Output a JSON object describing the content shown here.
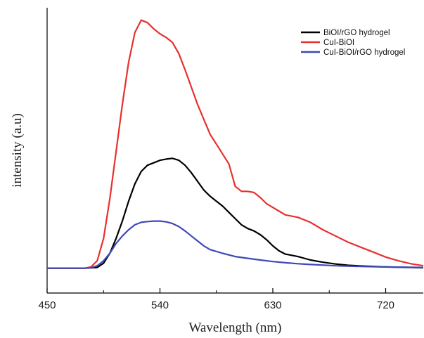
{
  "chart_data": {
    "type": "line",
    "title": "",
    "xlabel": "Wavelength (nm)",
    "ylabel": "intensity (a.u)",
    "xlim": [
      450,
      750
    ],
    "ylim": [
      -0.1,
      1.05
    ],
    "x_ticks": [
      450,
      540,
      630,
      720
    ],
    "y_ticks_shown": false,
    "grid": false,
    "legend_position": "top-right",
    "series": [
      {
        "name": "BiOI/rGO hydrogel",
        "color": "#000000",
        "points": [
          [
            450,
            0
          ],
          [
            480,
            0
          ],
          [
            490,
            0.003
          ],
          [
            495,
            0.02
          ],
          [
            500,
            0.06
          ],
          [
            505,
            0.12
          ],
          [
            510,
            0.19
          ],
          [
            515,
            0.27
          ],
          [
            520,
            0.34
          ],
          [
            525,
            0.39
          ],
          [
            530,
            0.415
          ],
          [
            535,
            0.425
          ],
          [
            540,
            0.435
          ],
          [
            545,
            0.44
          ],
          [
            550,
            0.443
          ],
          [
            555,
            0.435
          ],
          [
            560,
            0.415
          ],
          [
            565,
            0.385
          ],
          [
            570,
            0.35
          ],
          [
            575,
            0.315
          ],
          [
            580,
            0.29
          ],
          [
            585,
            0.27
          ],
          [
            590,
            0.25
          ],
          [
            595,
            0.225
          ],
          [
            600,
            0.2
          ],
          [
            605,
            0.175
          ],
          [
            610,
            0.16
          ],
          [
            615,
            0.15
          ],
          [
            620,
            0.135
          ],
          [
            625,
            0.115
          ],
          [
            630,
            0.09
          ],
          [
            635,
            0.07
          ],
          [
            640,
            0.057
          ],
          [
            650,
            0.047
          ],
          [
            660,
            0.033
          ],
          [
            670,
            0.024
          ],
          [
            680,
            0.017
          ],
          [
            690,
            0.012
          ],
          [
            700,
            0.009
          ],
          [
            720,
            0.005
          ],
          [
            750,
            0.002
          ]
        ]
      },
      {
        "name": "CuI-BiOI",
        "color": "#e8302e",
        "points": [
          [
            450,
            0
          ],
          [
            480,
            0
          ],
          [
            485,
            0.005
          ],
          [
            490,
            0.03
          ],
          [
            495,
            0.12
          ],
          [
            500,
            0.28
          ],
          [
            505,
            0.47
          ],
          [
            510,
            0.66
          ],
          [
            515,
            0.83
          ],
          [
            520,
            0.95
          ],
          [
            525,
            1.0
          ],
          [
            530,
            0.99
          ],
          [
            535,
            0.965
          ],
          [
            540,
            0.945
          ],
          [
            545,
            0.93
          ],
          [
            550,
            0.91
          ],
          [
            555,
            0.865
          ],
          [
            560,
            0.8
          ],
          [
            565,
            0.73
          ],
          [
            570,
            0.66
          ],
          [
            575,
            0.6
          ],
          [
            580,
            0.54
          ],
          [
            585,
            0.5
          ],
          [
            590,
            0.46
          ],
          [
            595,
            0.42
          ],
          [
            600,
            0.33
          ],
          [
            605,
            0.31
          ],
          [
            610,
            0.31
          ],
          [
            615,
            0.305
          ],
          [
            620,
            0.285
          ],
          [
            625,
            0.26
          ],
          [
            630,
            0.245
          ],
          [
            635,
            0.23
          ],
          [
            640,
            0.215
          ],
          [
            650,
            0.205
          ],
          [
            660,
            0.185
          ],
          [
            670,
            0.155
          ],
          [
            680,
            0.13
          ],
          [
            690,
            0.105
          ],
          [
            700,
            0.085
          ],
          [
            710,
            0.065
          ],
          [
            720,
            0.045
          ],
          [
            730,
            0.03
          ],
          [
            740,
            0.018
          ],
          [
            750,
            0.01
          ]
        ]
      },
      {
        "name": "CuI-BiOI/rGO hydrogel",
        "color": "#3f48b8",
        "points": [
          [
            450,
            0
          ],
          [
            480,
            0
          ],
          [
            485,
            0.002
          ],
          [
            490,
            0.01
          ],
          [
            495,
            0.03
          ],
          [
            500,
            0.06
          ],
          [
            505,
            0.1
          ],
          [
            510,
            0.13
          ],
          [
            515,
            0.155
          ],
          [
            520,
            0.175
          ],
          [
            525,
            0.185
          ],
          [
            530,
            0.188
          ],
          [
            535,
            0.19
          ],
          [
            540,
            0.19
          ],
          [
            545,
            0.187
          ],
          [
            550,
            0.18
          ],
          [
            555,
            0.168
          ],
          [
            560,
            0.15
          ],
          [
            565,
            0.13
          ],
          [
            570,
            0.11
          ],
          [
            575,
            0.09
          ],
          [
            580,
            0.075
          ],
          [
            590,
            0.06
          ],
          [
            600,
            0.047
          ],
          [
            610,
            0.04
          ],
          [
            620,
            0.033
          ],
          [
            630,
            0.027
          ],
          [
            640,
            0.022
          ],
          [
            650,
            0.018
          ],
          [
            660,
            0.015
          ],
          [
            680,
            0.01
          ],
          [
            700,
            0.007
          ],
          [
            720,
            0.005
          ],
          [
            750,
            0.003
          ]
        ]
      }
    ]
  }
}
